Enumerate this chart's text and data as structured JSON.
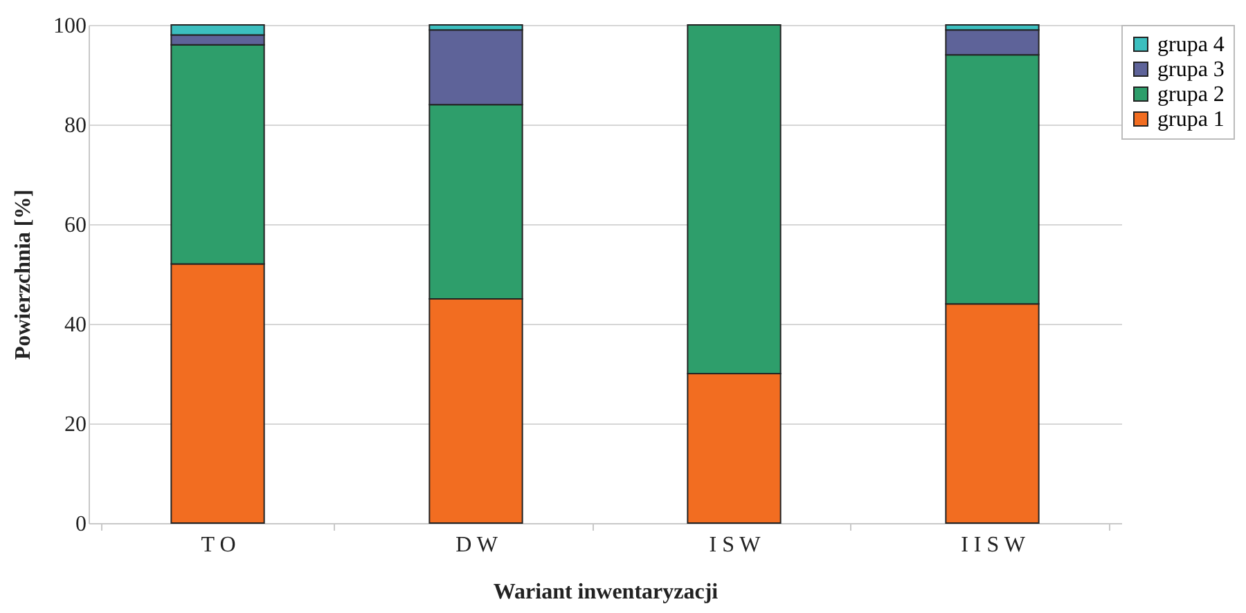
{
  "chart_data": {
    "type": "bar",
    "stacked": true,
    "xlabel": "Wariant inwentaryzacji",
    "ylabel": "Powierzchnia [%]",
    "categories": [
      "T O",
      "D W",
      "I S W",
      "I I S W"
    ],
    "series": [
      {
        "name": "grupa 1",
        "color": "#f26d21",
        "values": [
          52,
          45,
          30,
          44
        ]
      },
      {
        "name": "grupa 2",
        "color": "#2e9e6b",
        "values": [
          44,
          39,
          70,
          50
        ]
      },
      {
        "name": "grupa 3",
        "color": "#5e6399",
        "values": [
          2,
          15,
          0,
          5
        ]
      },
      {
        "name": "grupa 4",
        "color": "#3cbfbf",
        "values": [
          2,
          1,
          0,
          1
        ]
      }
    ],
    "ylim": [
      0,
      100
    ],
    "yticks": [
      0,
      20,
      40,
      60,
      80,
      100
    ],
    "grid": "y",
    "legend": "top right"
  }
}
